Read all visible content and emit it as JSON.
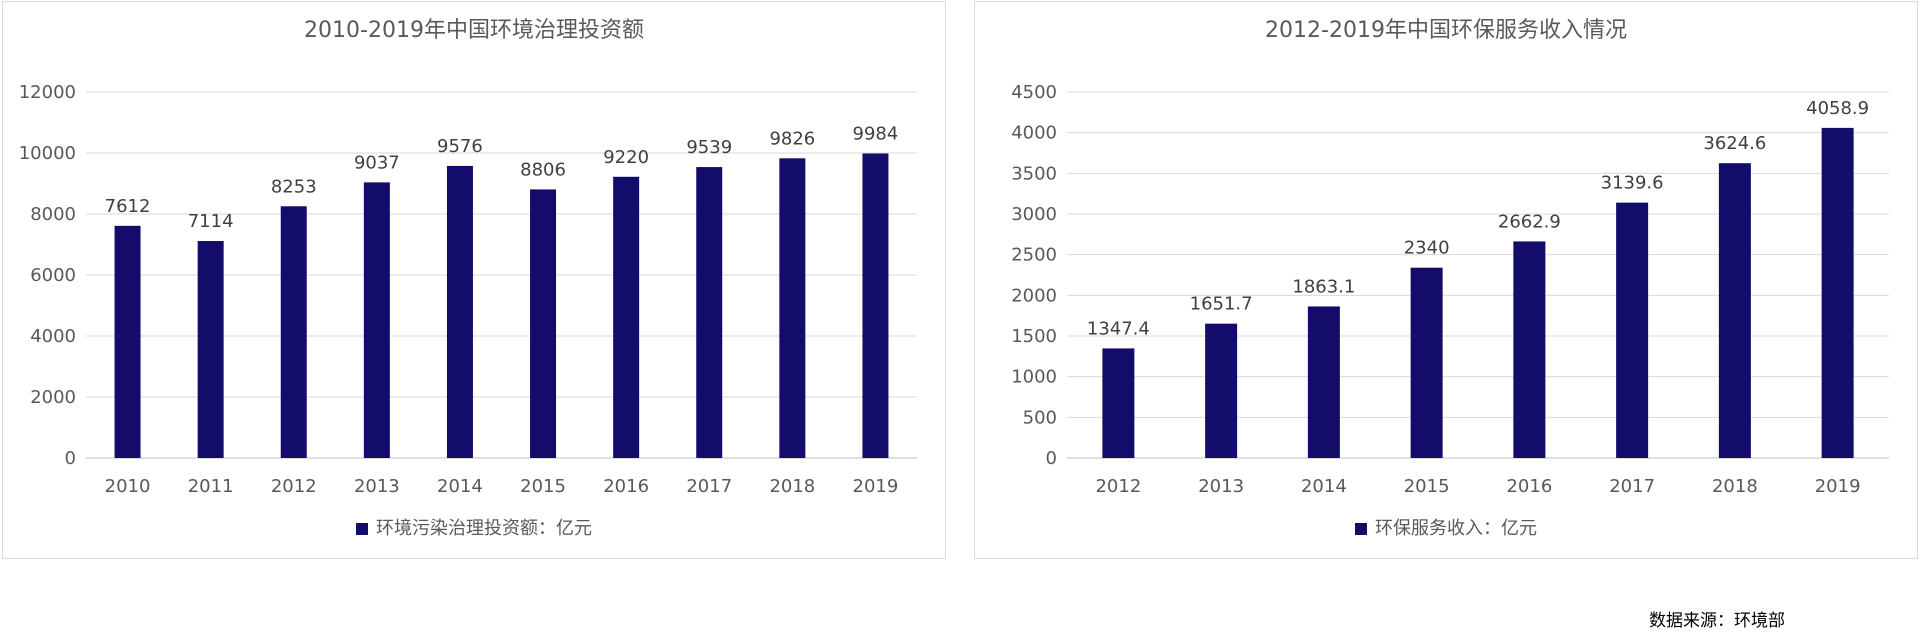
{
  "chart_data": [
    {
      "type": "bar",
      "title": "2010-2019年中国环境治理投资额",
      "categories": [
        "2010",
        "2011",
        "2012",
        "2013",
        "2014",
        "2015",
        "2016",
        "2017",
        "2018",
        "2019"
      ],
      "series": [
        {
          "name": "环境污染治理投资额：亿元",
          "values": [
            7612,
            7114,
            8253,
            9037,
            9576,
            8806,
            9220,
            9539,
            9826,
            9984
          ]
        }
      ],
      "data_labels": [
        "7612",
        "7114",
        "8253",
        "9037",
        "9576",
        "8806",
        "9220",
        "9539",
        "9826",
        "9984"
      ],
      "yticks": [
        "0",
        "2000",
        "4000",
        "6000",
        "8000",
        "10000",
        "12000"
      ],
      "ylim": [
        0,
        12000
      ],
      "xlabel": "",
      "ylabel": "",
      "grid": true,
      "legend_position": "bottom",
      "bar_color": "#140c6b"
    },
    {
      "type": "bar",
      "title": "2012-2019年中国环保服务收入情况",
      "categories": [
        "2012",
        "2013",
        "2014",
        "2015",
        "2016",
        "2017",
        "2018",
        "2019"
      ],
      "series": [
        {
          "name": "环保服务收入：亿元",
          "values": [
            1347.4,
            1651.7,
            1863.1,
            2340,
            2662.9,
            3139.6,
            3624.6,
            4058.9
          ]
        }
      ],
      "data_labels": [
        "1347.4",
        "1651.7",
        "1863.1",
        "2340",
        "2662.9",
        "3139.6",
        "3624.6",
        "4058.9"
      ],
      "yticks": [
        "0",
        "500",
        "1000",
        "1500",
        "2000",
        "2500",
        "3000",
        "3500",
        "4000",
        "4500"
      ],
      "ylim": [
        0,
        4500
      ],
      "xlabel": "",
      "ylabel": "",
      "grid": true,
      "legend_position": "bottom",
      "bar_color": "#140c6b"
    }
  ],
  "source_note": "数据来源：环境部"
}
